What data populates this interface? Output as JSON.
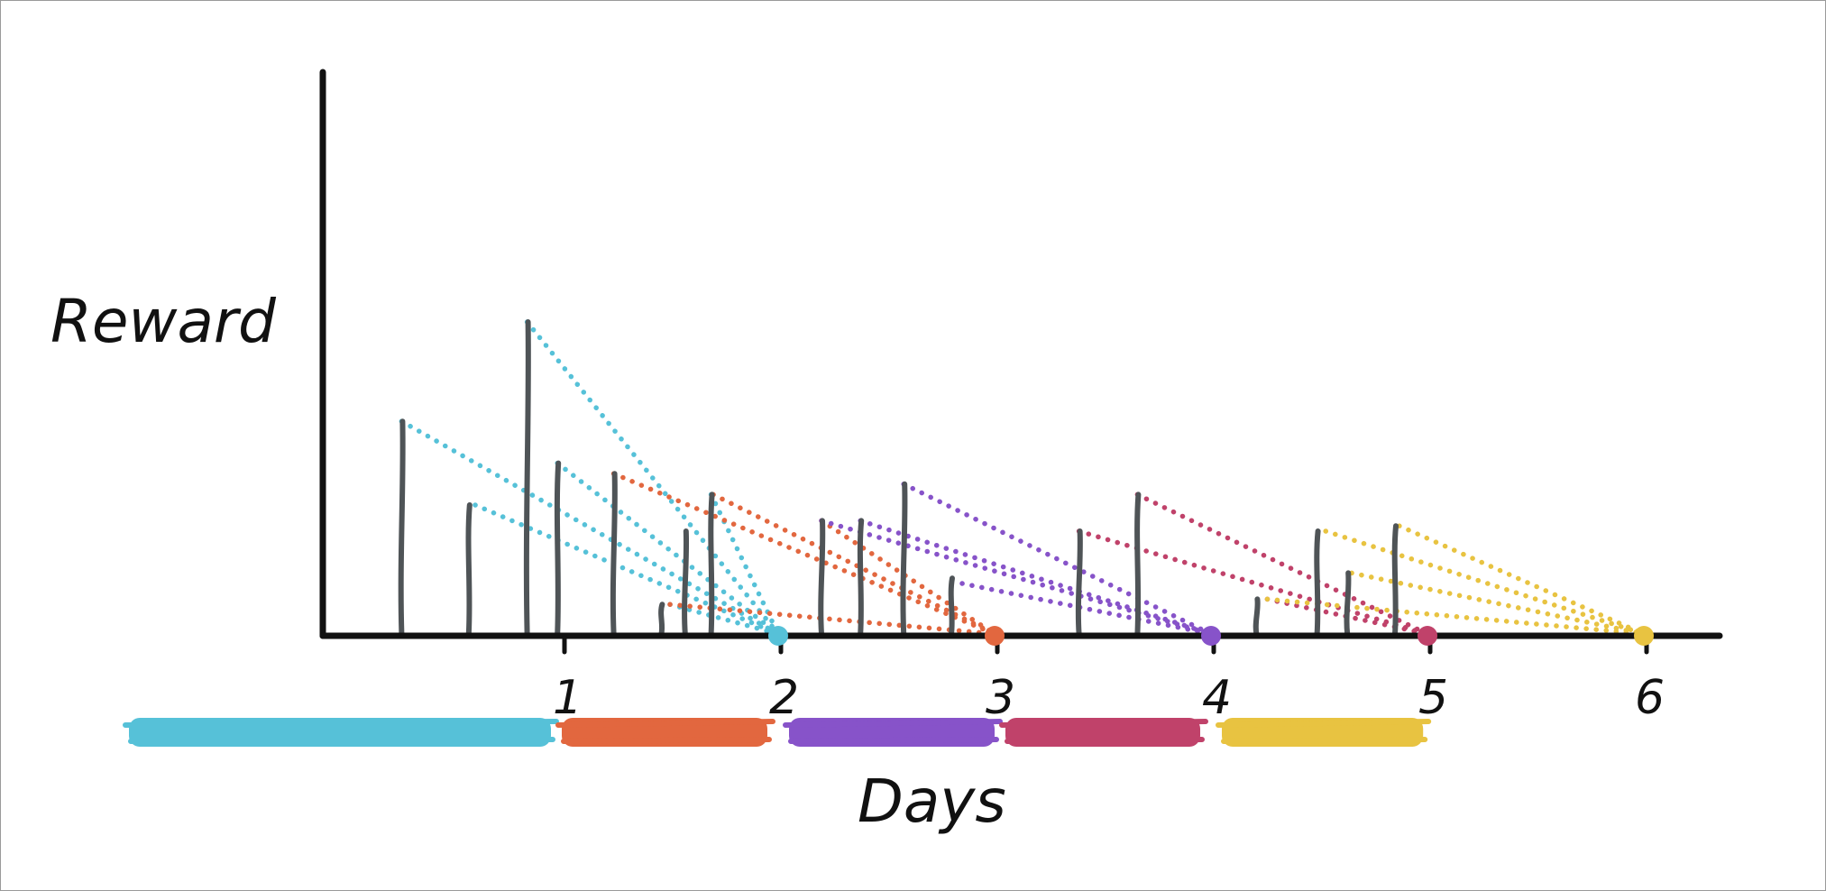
{
  "chart_data": {
    "type": "line",
    "xlabel": "Days",
    "ylabel": "Reward",
    "title": "",
    "x_ticks": [
      1,
      2,
      3,
      4,
      5,
      6
    ],
    "xlim": [
      -1.1,
      6.3
    ],
    "ylim": [
      0,
      1.0
    ],
    "series": [
      {
        "color": "#56c1d8",
        "band": [
          -1.0,
          0.95
        ],
        "collect_day": 2.0,
        "rewards": [
          {
            "day": 0.26,
            "value": 0.41
          },
          {
            "day": 0.6,
            "value": 0.25
          },
          {
            "day": 0.84,
            "value": 0.6
          },
          {
            "day": 0.98,
            "value": 0.33
          },
          {
            "day": 1.5,
            "value": 0.06
          },
          {
            "day": 1.69,
            "value": 0.27
          }
        ]
      },
      {
        "color": "#e2673f",
        "band": [
          1.0,
          1.95
        ],
        "collect_day": 3.0,
        "rewards": [
          {
            "day": 1.24,
            "value": 0.31
          },
          {
            "day": 1.5,
            "value": 0.06
          },
          {
            "day": 1.7,
            "value": 0.27
          },
          {
            "day": 2.2,
            "value": 0.22
          }
        ]
      },
      {
        "color": "#8753c9",
        "band": [
          2.05,
          3.0
        ],
        "collect_day": 4.0,
        "rewards": [
          {
            "day": 2.2,
            "value": 0.22
          },
          {
            "day": 2.38,
            "value": 0.22
          },
          {
            "day": 2.58,
            "value": 0.29
          },
          {
            "day": 2.85,
            "value": 0.1
          }
        ]
      },
      {
        "color": "#c0426a",
        "band": [
          3.05,
          3.95
        ],
        "collect_day": 5.0,
        "rewards": [
          {
            "day": 3.39,
            "value": 0.2
          },
          {
            "day": 3.66,
            "value": 0.27
          },
          {
            "day": 4.26,
            "value": 0.07
          }
        ]
      },
      {
        "color": "#e8c341",
        "band": [
          4.05,
          4.98
        ],
        "collect_day": 6.0,
        "rewards": [
          {
            "day": 4.26,
            "value": 0.07
          },
          {
            "day": 4.53,
            "value": 0.2
          },
          {
            "day": 4.65,
            "value": 0.12
          },
          {
            "day": 4.87,
            "value": 0.21
          }
        ]
      }
    ],
    "spikes": [
      {
        "day": 0.26,
        "value": 0.41
      },
      {
        "day": 0.57,
        "value": 0.25
      },
      {
        "day": 0.84,
        "value": 0.6
      },
      {
        "day": 0.98,
        "value": 0.33
      },
      {
        "day": 1.24,
        "value": 0.31
      },
      {
        "day": 1.46,
        "value": 0.06
      },
      {
        "day": 1.57,
        "value": 0.2
      },
      {
        "day": 1.69,
        "value": 0.27
      },
      {
        "day": 2.2,
        "value": 0.22
      },
      {
        "day": 2.38,
        "value": 0.22
      },
      {
        "day": 2.58,
        "value": 0.29
      },
      {
        "day": 2.8,
        "value": 0.11
      },
      {
        "day": 3.39,
        "value": 0.2
      },
      {
        "day": 3.66,
        "value": 0.27
      },
      {
        "day": 4.21,
        "value": 0.07
      },
      {
        "day": 4.49,
        "value": 0.2
      },
      {
        "day": 4.63,
        "value": 0.12
      },
      {
        "day": 4.85,
        "value": 0.21
      }
    ]
  }
}
